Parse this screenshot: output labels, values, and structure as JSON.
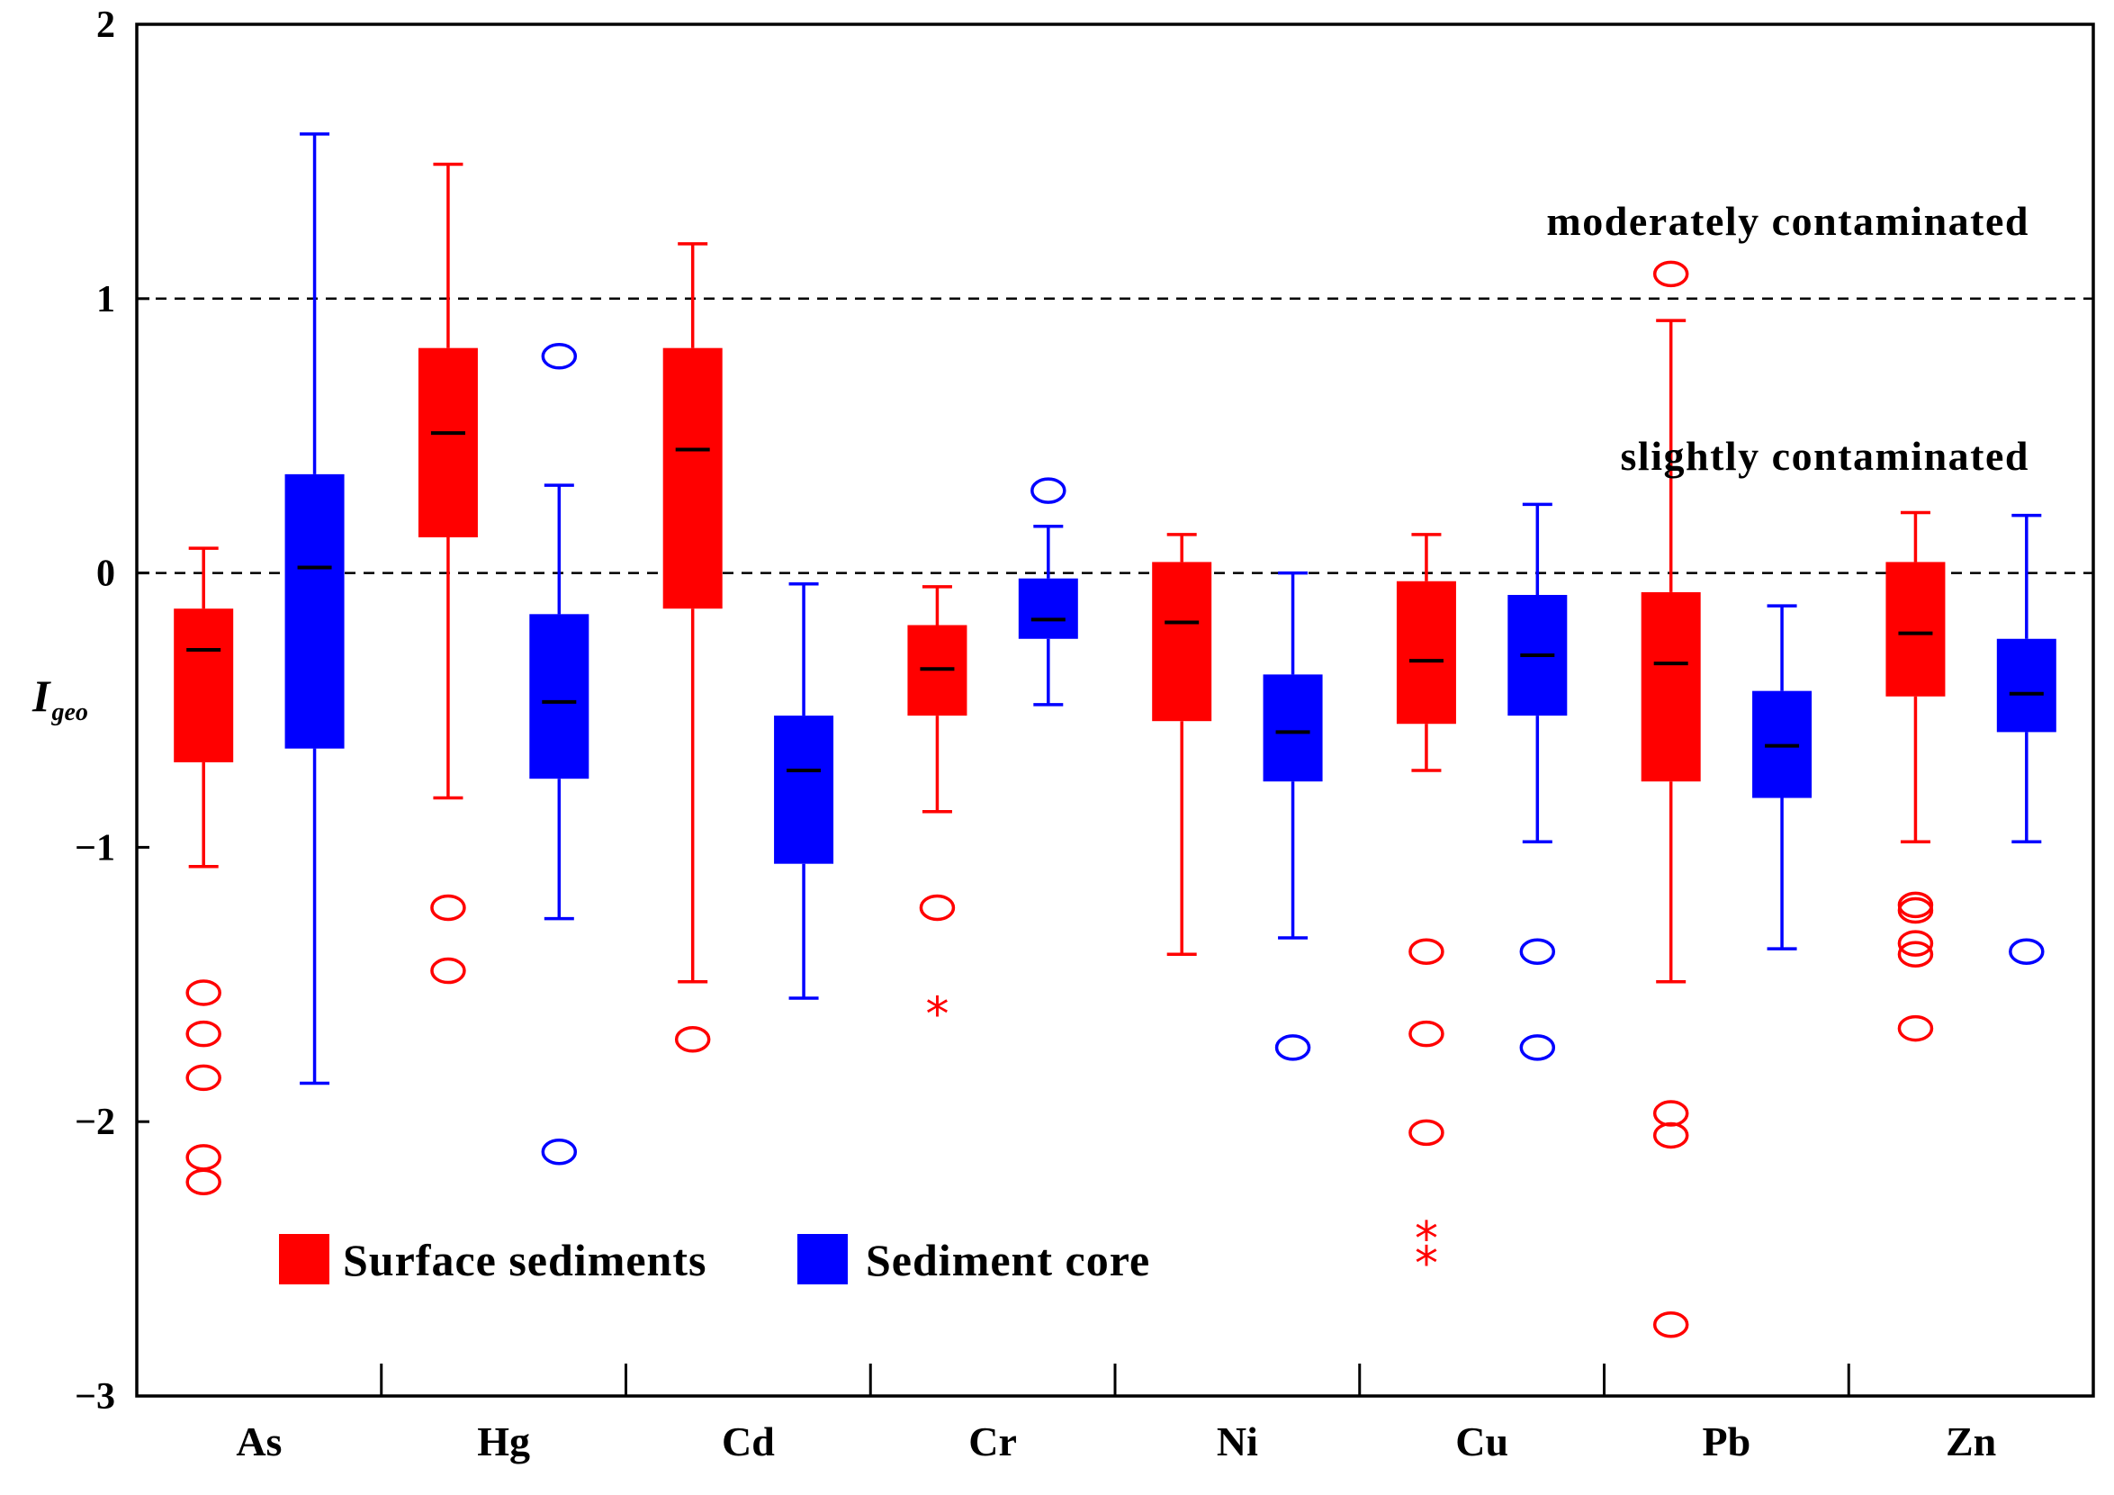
{
  "chart_data": {
    "type": "box",
    "ylabel": "I",
    "ylabel_sub": "geo",
    "ylim": [
      -3,
      2
    ],
    "yticks": [
      2,
      1,
      0,
      -1,
      -2,
      -3
    ],
    "ytick_labels": [
      "2",
      "1",
      "0",
      "−1",
      "−2",
      "−3"
    ],
    "categories": [
      "As",
      "Hg",
      "Cd",
      "Cr",
      "Ni",
      "Cu",
      "Pb",
      "Zn"
    ],
    "reference_lines": [
      {
        "value": 1,
        "label": "moderately contaminated"
      },
      {
        "value": 0,
        "label": "slightly contaminated"
      }
    ],
    "series": [
      {
        "name": "Surface sediments",
        "color": "#ff0000",
        "boxes": [
          {
            "category": "As",
            "whisker_low": -1.07,
            "q1": -0.69,
            "median": -0.28,
            "q3": -0.13,
            "whisker_high": 0.09,
            "outliers": [
              -1.53,
              -1.68,
              -1.84,
              -2.13,
              -2.22
            ],
            "extremes": []
          },
          {
            "category": "Hg",
            "whisker_low": -0.82,
            "q1": 0.13,
            "median": 0.51,
            "q3": 0.82,
            "whisker_high": 1.49,
            "outliers": [
              -1.22,
              -1.45
            ],
            "extremes": []
          },
          {
            "category": "Cd",
            "whisker_low": -1.49,
            "q1": -0.13,
            "median": 0.45,
            "q3": 0.82,
            "whisker_high": 1.2,
            "outliers": [
              -1.7
            ],
            "extremes": []
          },
          {
            "category": "Cr",
            "whisker_low": -0.87,
            "q1": -0.52,
            "median": -0.35,
            "q3": -0.19,
            "whisker_high": -0.05,
            "outliers": [
              -1.22
            ],
            "extremes": [
              -1.6
            ]
          },
          {
            "category": "Ni",
            "whisker_low": -1.39,
            "q1": -0.54,
            "median": -0.18,
            "q3": 0.04,
            "whisker_high": 0.14,
            "outliers": [],
            "extremes": []
          },
          {
            "category": "Cu",
            "whisker_low": -0.72,
            "q1": -0.55,
            "median": -0.32,
            "q3": -0.03,
            "whisker_high": 0.14,
            "outliers": [
              -1.38,
              -1.68,
              -2.04
            ],
            "extremes": [
              -2.42,
              -2.51
            ]
          },
          {
            "category": "Pb",
            "whisker_low": -1.49,
            "q1": -0.76,
            "median": -0.33,
            "q3": -0.07,
            "whisker_high": 0.92,
            "outliers": [
              1.09,
              -1.97,
              -2.05,
              -2.74
            ],
            "extremes": []
          },
          {
            "category": "Zn",
            "whisker_low": -0.98,
            "q1": -0.45,
            "median": -0.22,
            "q3": 0.04,
            "whisker_high": 0.22,
            "outliers": [
              -1.21,
              -1.23,
              -1.35,
              -1.39,
              -1.66
            ],
            "extremes": []
          }
        ]
      },
      {
        "name": "Sediment core",
        "color": "#0000ff",
        "boxes": [
          {
            "category": "As",
            "whisker_low": -1.86,
            "q1": -0.64,
            "median": 0.02,
            "q3": 0.36,
            "whisker_high": 1.6,
            "outliers": [],
            "extremes": []
          },
          {
            "category": "Hg",
            "whisker_low": -1.26,
            "q1": -0.75,
            "median": -0.47,
            "q3": -0.15,
            "whisker_high": 0.32,
            "outliers": [
              0.79,
              -2.11
            ],
            "extremes": []
          },
          {
            "category": "Cd",
            "whisker_low": -1.55,
            "q1": -1.06,
            "median": -0.72,
            "q3": -0.52,
            "whisker_high": -0.04,
            "outliers": [],
            "extremes": []
          },
          {
            "category": "Cr",
            "whisker_low": -0.48,
            "q1": -0.24,
            "median": -0.17,
            "q3": -0.02,
            "whisker_high": 0.17,
            "outliers": [
              0.3
            ],
            "extremes": []
          },
          {
            "category": "Ni",
            "whisker_low": -1.33,
            "q1": -0.76,
            "median": -0.58,
            "q3": -0.37,
            "whisker_high": 0.0,
            "outliers": [
              -1.73
            ],
            "extremes": []
          },
          {
            "category": "Cu",
            "whisker_low": -0.98,
            "q1": -0.52,
            "median": -0.3,
            "q3": -0.08,
            "whisker_high": 0.25,
            "outliers": [
              -1.38,
              -1.73
            ],
            "extremes": []
          },
          {
            "category": "Pb",
            "whisker_low": -1.37,
            "q1": -0.82,
            "median": -0.63,
            "q3": -0.43,
            "whisker_high": -0.12,
            "outliers": [],
            "extremes": []
          },
          {
            "category": "Zn",
            "whisker_low": -0.98,
            "q1": -0.58,
            "median": -0.44,
            "q3": -0.24,
            "whisker_high": 0.21,
            "outliers": [
              -1.38
            ],
            "extremes": []
          }
        ]
      }
    ],
    "legend": {
      "position": "bottom-left",
      "entries": [
        "Surface sediments",
        "Sediment core"
      ]
    }
  }
}
